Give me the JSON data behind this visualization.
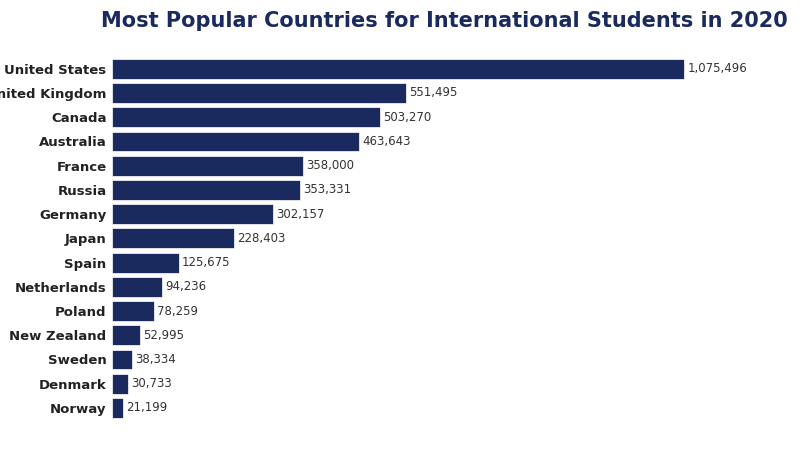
{
  "title": "Most Popular Countries for International Students in 2020",
  "countries": [
    "United States",
    "United Kingdom",
    "Canada",
    "Australia",
    "France",
    "Russia",
    "Germany",
    "Japan",
    "Spain",
    "Netherlands",
    "Poland",
    "New Zealand",
    "Sweden",
    "Denmark",
    "Norway"
  ],
  "values": [
    1075496,
    551495,
    503270,
    463643,
    358000,
    353331,
    302157,
    228403,
    125675,
    94236,
    78259,
    52995,
    38334,
    30733,
    21199
  ],
  "labels": [
    "1,075,496",
    "551,495",
    "503,270",
    "463,643",
    "358,000",
    "353,331",
    "302,157",
    "228,403",
    "125,675",
    "94,236",
    "78,259",
    "52,995",
    "38,334",
    "30,733",
    "21,199"
  ],
  "bar_color": "#1b2a5e",
  "background_color": "#ffffff",
  "title_color": "#1b2a5e",
  "title_fontsize": 15,
  "label_fontsize": 8.5,
  "tick_fontsize": 9.5,
  "bar_height": 0.82
}
